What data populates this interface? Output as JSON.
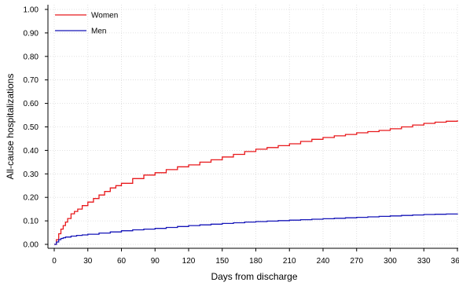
{
  "chart_data": {
    "type": "line",
    "title": "",
    "xlabel": "Days from discharge",
    "ylabel": "All-cause hospitalizations",
    "xlim": [
      0,
      360
    ],
    "ylim": [
      0,
      1
    ],
    "x_ticks": [
      0,
      30,
      60,
      90,
      120,
      150,
      180,
      210,
      240,
      270,
      300,
      330,
      360
    ],
    "x_tick_labels": [
      "0",
      "30",
      "60",
      "90",
      "120",
      "150",
      "180",
      "210",
      "240",
      "270",
      "300",
      "330",
      "360"
    ],
    "y_ticks": [
      0,
      0.1,
      0.2,
      0.3,
      0.4,
      0.5,
      0.6,
      0.7,
      0.8,
      0.9,
      1.0
    ],
    "y_tick_labels": [
      "0.00",
      "0.10",
      "0.20",
      "0.30",
      "0.40",
      "0.50",
      "0.60",
      "0.70",
      "0.80",
      "0.90",
      "1.00"
    ],
    "grid": true,
    "legend_position": "top-left",
    "series": [
      {
        "name": "Women",
        "color": "#e8191c",
        "x": [
          0,
          2,
          4,
          6,
          8,
          10,
          12,
          15,
          18,
          21,
          25,
          30,
          35,
          40,
          45,
          50,
          55,
          60,
          70,
          80,
          90,
          100,
          110,
          120,
          130,
          140,
          150,
          160,
          170,
          180,
          190,
          200,
          210,
          220,
          230,
          240,
          250,
          260,
          270,
          280,
          290,
          300,
          310,
          320,
          330,
          340,
          350,
          360
        ],
        "y": [
          0.0,
          0.02,
          0.045,
          0.065,
          0.08,
          0.095,
          0.11,
          0.13,
          0.14,
          0.15,
          0.165,
          0.18,
          0.195,
          0.21,
          0.225,
          0.24,
          0.25,
          0.26,
          0.28,
          0.295,
          0.305,
          0.318,
          0.33,
          0.338,
          0.35,
          0.36,
          0.372,
          0.383,
          0.395,
          0.405,
          0.412,
          0.42,
          0.428,
          0.438,
          0.447,
          0.455,
          0.462,
          0.468,
          0.475,
          0.48,
          0.485,
          0.492,
          0.5,
          0.508,
          0.515,
          0.52,
          0.524,
          0.528
        ]
      },
      {
        "name": "Men",
        "color": "#1515b8",
        "x": [
          0,
          2,
          4,
          6,
          8,
          10,
          15,
          20,
          25,
          30,
          40,
          50,
          60,
          70,
          80,
          90,
          100,
          110,
          120,
          130,
          140,
          150,
          160,
          170,
          180,
          190,
          200,
          210,
          220,
          230,
          240,
          250,
          260,
          270,
          280,
          290,
          300,
          310,
          320,
          330,
          340,
          350,
          360
        ],
        "y": [
          0.0,
          0.01,
          0.02,
          0.025,
          0.028,
          0.031,
          0.035,
          0.038,
          0.04,
          0.043,
          0.048,
          0.053,
          0.058,
          0.062,
          0.065,
          0.068,
          0.072,
          0.076,
          0.08,
          0.083,
          0.086,
          0.089,
          0.092,
          0.095,
          0.097,
          0.099,
          0.101,
          0.103,
          0.105,
          0.107,
          0.109,
          0.111,
          0.113,
          0.115,
          0.117,
          0.119,
          0.121,
          0.123,
          0.125,
          0.127,
          0.128,
          0.129,
          0.131
        ]
      }
    ]
  }
}
